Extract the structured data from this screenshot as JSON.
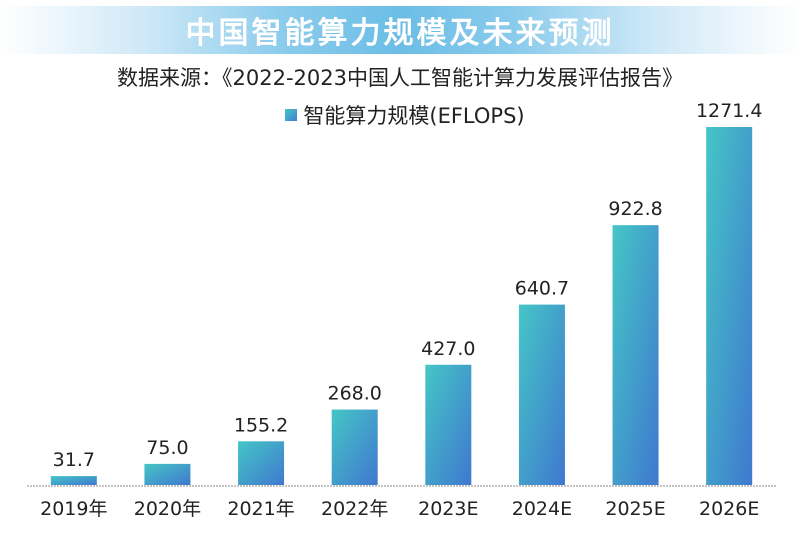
{
  "title": "中国智能算力规模及未来预测",
  "source": "数据来源：《2022-2023中国人工智能计算力发展评估报告》",
  "colors": {
    "bar_top": "#45c6c6",
    "bar_bottom": "#3f78cf",
    "title_bar": "#6bbde6",
    "baseline": "#888888"
  },
  "chart_data": {
    "type": "bar",
    "title": "中国智能算力规模及未来预测",
    "subtitle": "数据来源：《2022-2023中国人工智能计算力发展评估报告》",
    "categories": [
      "2019年",
      "2020年",
      "2021年",
      "2022年",
      "2023E",
      "2024E",
      "2025E",
      "2026E"
    ],
    "series": [
      {
        "name": "智能算力规模(EFLOPS)",
        "values": [
          31.7,
          75.0,
          155.2,
          268.0,
          427.0,
          640.7,
          922.8,
          1271.4
        ],
        "labels": [
          "31.7",
          "75.0",
          "155.2",
          "268.0",
          "427.0",
          "640.7",
          "922.8",
          "1271.4"
        ]
      }
    ],
    "xlabel": "",
    "ylabel": "",
    "ylim": [
      0,
      1271.4
    ],
    "grid": false,
    "legend": "top-center",
    "data_labels": true
  }
}
